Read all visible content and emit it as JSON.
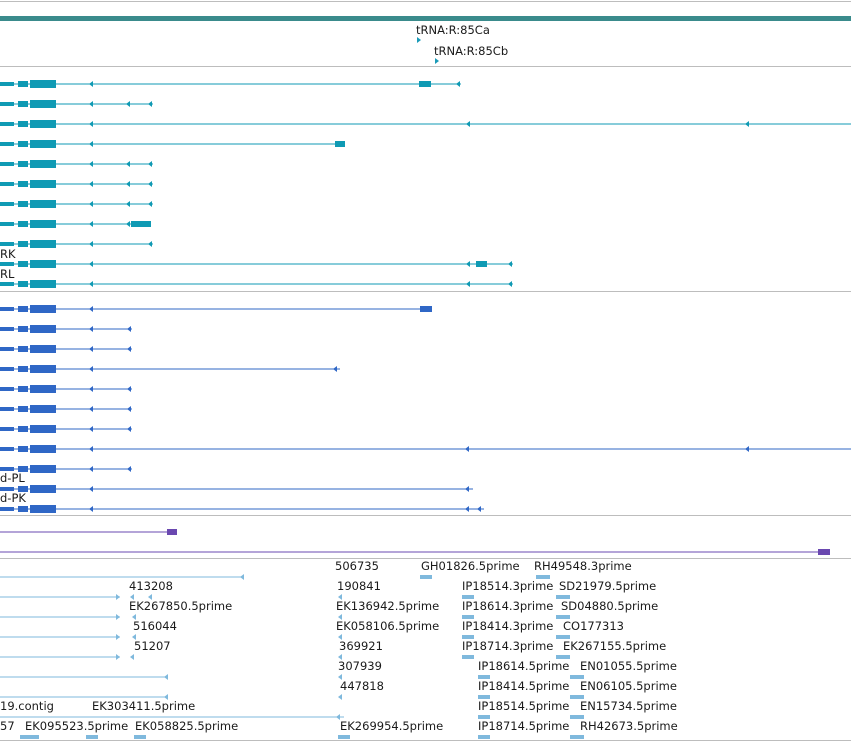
{
  "colors": {
    "top_bar": "#3a8b8c",
    "tracks": "#1a9bb8",
    "transcripts_a": "#0f9ab4",
    "transcripts_b": "#2f67c6",
    "purple": "#6a48b0",
    "ests": "#7fb9dd",
    "separator": "#bdbdbd"
  },
  "trna_labels": [
    {
      "name": "trna-85ca-label",
      "text": "tRNA:R:85Ca"
    },
    {
      "name": "trna-85cb-label",
      "text": "tRNA:R:85Cb"
    }
  ],
  "transcript_labels_a": [
    {
      "name": "transcript-rk-label",
      "text": "RK"
    },
    {
      "name": "transcript-rl-label",
      "text": "RL"
    }
  ],
  "transcript_labels_b": [
    {
      "name": "transcript-pl-label",
      "text": "d-PL"
    },
    {
      "name": "transcript-pk-label",
      "text": "d-PK"
    }
  ],
  "est_labels": [
    "506735",
    "GH01826.5prime",
    "RH49548.3prime",
    "413208",
    "190841",
    "IP18514.3prime",
    "SD21979.5prime",
    "EK267850.5prime",
    "EK136942.5prime",
    "IP18614.3prime",
    "SD04880.5prime",
    "516044",
    "EK058106.5prime",
    "IP18414.3prime",
    "CO177313",
    "51207",
    "369921",
    "IP18714.3prime",
    "EK267155.5prime",
    "307939",
    "IP18614.5prime",
    "EN01055.5prime",
    "447818",
    "IP18414.5prime",
    "EN06105.5prime",
    "19.contig",
    "EK303411.5prime",
    "IP18514.5prime",
    "EN15734.5prime",
    "57",
    "EK095523.5prime",
    "EK058825.5prime",
    "EK269954.5prime",
    "IP18714.5prime",
    "RH42673.5prime"
  ]
}
